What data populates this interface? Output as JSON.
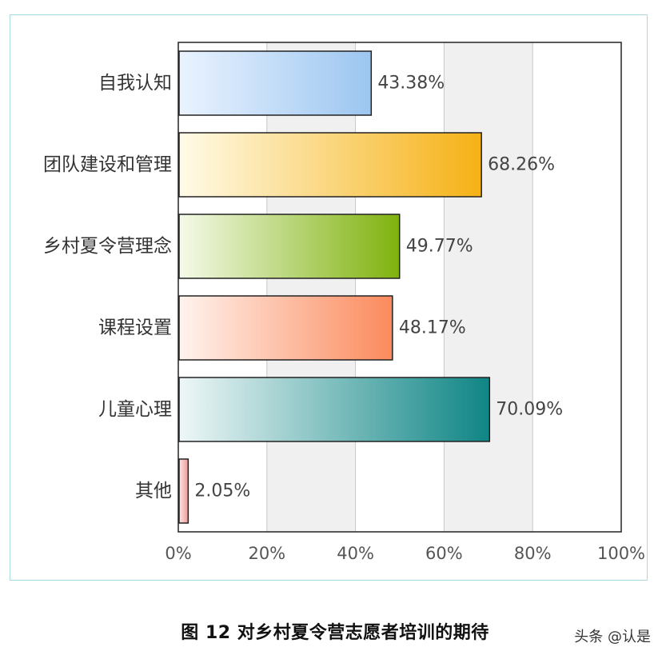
{
  "chart_data": {
    "type": "bar",
    "orientation": "horizontal",
    "categories": [
      "自我认知",
      "团队建设和管理",
      "乡村夏令营理念",
      "课程设置",
      "儿童心理",
      "其他"
    ],
    "values": [
      43.38,
      68.26,
      49.77,
      48.17,
      70.09,
      2.05
    ],
    "value_labels": [
      "43.38%",
      "68.26%",
      "49.77%",
      "48.17%",
      "70.09%",
      "2.05%"
    ],
    "xlim": [
      0,
      100
    ],
    "x_ticks": [
      "0%",
      "20%",
      "40%",
      "60%",
      "80%",
      "100%"
    ],
    "grid": true,
    "bar_colors": [
      {
        "light": "#eaf3ff",
        "dark": "#9cc6f0",
        "edge": "#222222"
      },
      {
        "light": "#fffbe8",
        "dark": "#f6b115",
        "edge": "#222222"
      },
      {
        "light": "#f5fae9",
        "dark": "#7fb20d",
        "edge": "#222222"
      },
      {
        "light": "#fff3ee",
        "dark": "#fb8a5c",
        "edge": "#222222"
      },
      {
        "light": "#eef7f7",
        "dark": "#0f8585",
        "edge": "#222222"
      },
      {
        "light": "#fde3e3",
        "dark": "#f29a9a",
        "edge": "#222222"
      }
    ]
  },
  "caption": "图 12 对乡村夏令营志愿者培训的期待",
  "watermark": "头条 @认是"
}
